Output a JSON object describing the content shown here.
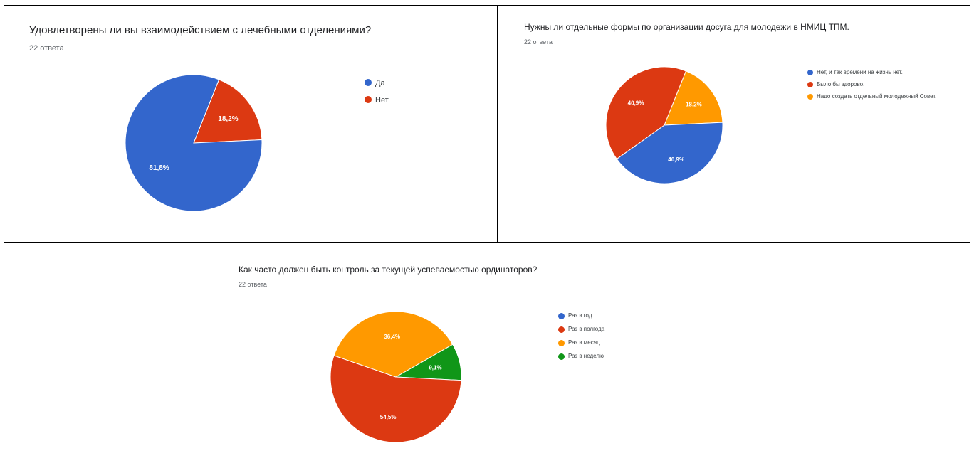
{
  "chart_data": [
    {
      "type": "pie",
      "title": "Удовлетворены ли вы взаимодействием с лечебными отделениями?",
      "subtitle": "22 ответа",
      "categories": [
        "Да",
        "Нет"
      ],
      "values": [
        81.8,
        18.2
      ],
      "labels": [
        "81,8%",
        "18,2%"
      ],
      "colors": [
        "#3366cc",
        "#dc3912"
      ],
      "legend_position": "right"
    },
    {
      "type": "pie",
      "title": "Нужны ли отдельные формы по организации досуга для молодежи в НМИЦ ТПМ.",
      "subtitle": "22 ответа",
      "categories": [
        "Нет, и так времени на жизнь нет.",
        "Было бы здорово.",
        "Надо создать отдельный молодежный Совет."
      ],
      "values": [
        40.9,
        40.9,
        18.2
      ],
      "labels": [
        "40,9%",
        "40,9%",
        "18,2%"
      ],
      "colors": [
        "#3366cc",
        "#dc3912",
        "#ff9900"
      ],
      "legend_position": "right"
    },
    {
      "type": "pie",
      "title": "Как часто должен быть контроль за текущей успеваемостью ординаторов?",
      "subtitle": "22 ответа",
      "categories": [
        "Раз в год",
        "Раз в полгода",
        "Раз в месяц",
        "Раз в неделю"
      ],
      "values": [
        0,
        54.5,
        36.4,
        9.1
      ],
      "labels": [
        "",
        "54,5%",
        "36,4%",
        "9,1%"
      ],
      "colors": [
        "#3366cc",
        "#dc3912",
        "#ff9900",
        "#109618"
      ],
      "legend_position": "right"
    }
  ]
}
